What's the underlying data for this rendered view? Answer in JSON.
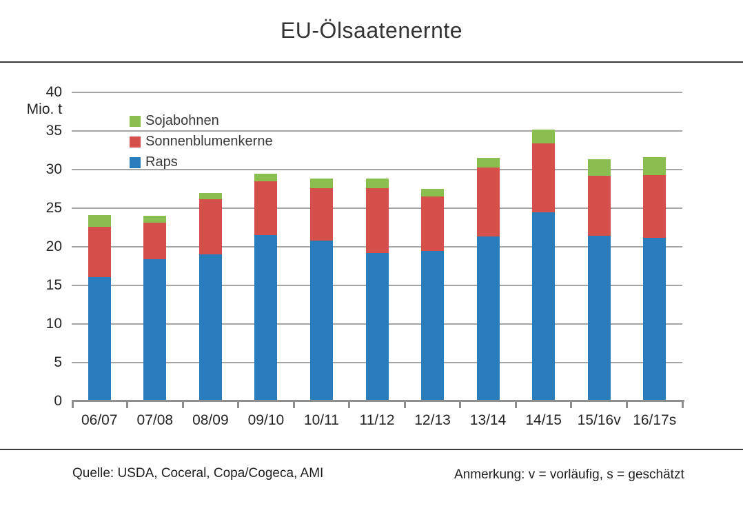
{
  "title": "EU-Ölsaatenernte",
  "y_axis": {
    "unit": "Mio. t",
    "ticks": [
      0,
      5,
      10,
      15,
      20,
      25,
      30,
      35,
      40
    ],
    "max": 40
  },
  "legend": {
    "items": [
      {
        "label": "Sojabohnen",
        "color": "#8ABF4F"
      },
      {
        "label": "Sonnenblumenkerne",
        "color": "#D5504B"
      },
      {
        "label": "Raps",
        "color": "#2A7DBD"
      }
    ]
  },
  "chart_data": {
    "type": "bar",
    "stacked": true,
    "title": "EU-Ölsaatenernte",
    "ylabel": "Mio. t",
    "ylim": [
      0,
      40
    ],
    "grid": true,
    "legend_position": "inside-top-left",
    "categories": [
      "06/07",
      "07/08",
      "08/09",
      "09/10",
      "10/11",
      "11/12",
      "12/13",
      "13/14",
      "14/15",
      "15/16v",
      "16/17s"
    ],
    "series": [
      {
        "name": "Raps",
        "color": "#2A7DBD",
        "values": [
          16.1,
          18.4,
          19.0,
          21.5,
          20.8,
          19.2,
          19.5,
          21.3,
          24.5,
          21.4,
          21.2
        ]
      },
      {
        "name": "Sonnenblumenkerne",
        "color": "#D5504B",
        "values": [
          6.5,
          4.7,
          7.2,
          7.0,
          6.8,
          8.4,
          7.0,
          9.0,
          8.9,
          7.8,
          8.1
        ]
      },
      {
        "name": "Sojabohnen",
        "color": "#8ABF4F",
        "values": [
          1.5,
          0.9,
          0.8,
          1.0,
          1.2,
          1.2,
          1.0,
          1.2,
          1.8,
          2.1,
          2.3
        ]
      }
    ]
  },
  "footer": {
    "source": "Quelle: USDA, Coceral, Copa/Cogeca, AMI",
    "note": "Anmerkung: v = vorläufig, s = geschätzt"
  },
  "colors": {
    "gridline": "#a4a4a4",
    "axis": "#8f8f8f",
    "text": "#262626"
  }
}
